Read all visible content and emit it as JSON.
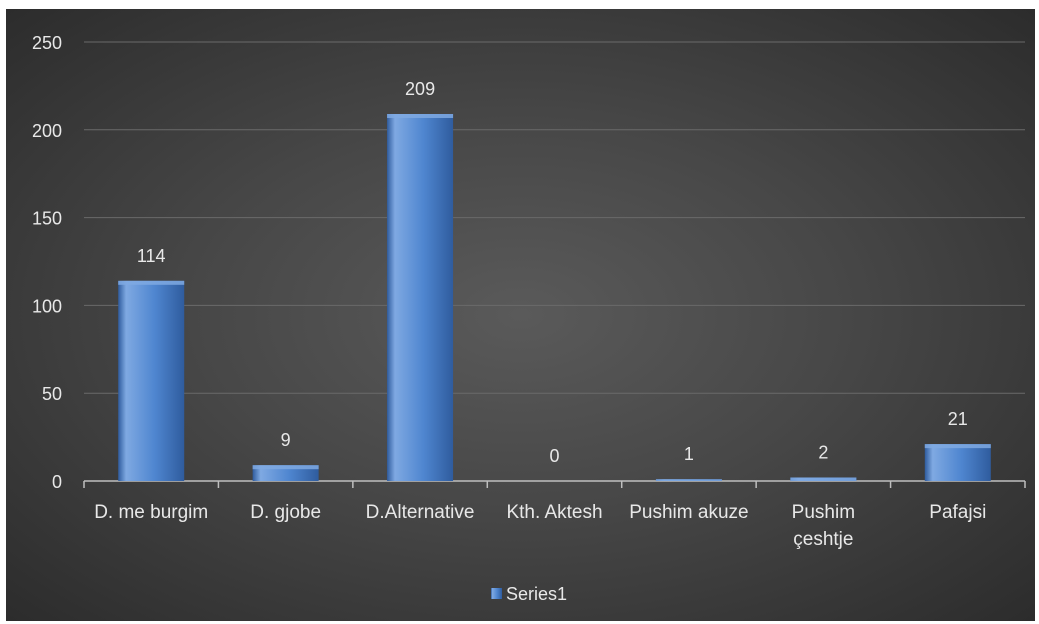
{
  "chart_data": {
    "type": "bar",
    "categories": [
      [
        "D. me burgim"
      ],
      [
        "D. gjobe"
      ],
      [
        "D.Alternative"
      ],
      [
        "Kth. Aktesh"
      ],
      [
        "Pushim akuze"
      ],
      [
        "Pushim",
        "çeshtje"
      ],
      [
        "Pafajsi"
      ]
    ],
    "series": [
      {
        "name": "Series1",
        "values": [
          114,
          9,
          209,
          0,
          1,
          2,
          21
        ]
      }
    ],
    "data_labels": [
      "114",
      "9",
      "209",
      "0",
      "1",
      "2",
      "21"
    ],
    "ylim": [
      0,
      250
    ],
    "yticks": [
      0,
      50,
      100,
      150,
      200,
      250
    ],
    "grid": true,
    "legend_position": "bottom",
    "colors": {
      "bar": "#4f86d0",
      "bar_light": "#7fa9e2",
      "bar_dark": "#2f5c9e",
      "grid": "#6a6a6a",
      "axis": "#bfbfbf",
      "text": "#e8e8e8"
    }
  }
}
